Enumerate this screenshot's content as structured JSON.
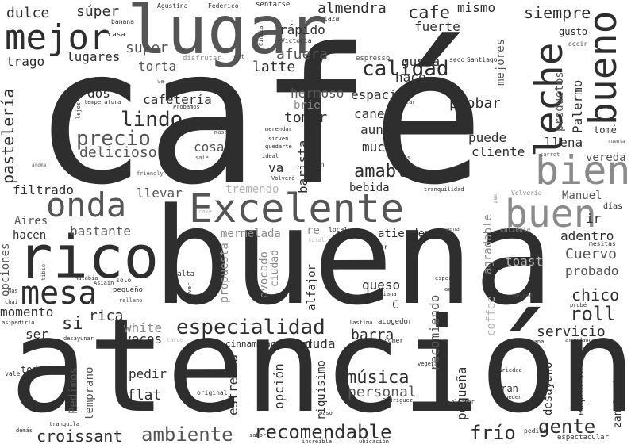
{
  "palette": {
    "dark": "#2e2e2e",
    "mid": "#555555",
    "light": "#8a8a8a",
    "faint": "#b5b5b5"
  },
  "words": [
    {
      "text": "café",
      "c": "dark"
    },
    {
      "text": "buena",
      "c": "dark"
    },
    {
      "text": "atención",
      "c": "dark"
    },
    {
      "text": "lugar",
      "c": "mid"
    },
    {
      "text": "mejor",
      "c": "dark"
    },
    {
      "text": "rico",
      "c": "dark"
    },
    {
      "text": "Excelente",
      "c": "mid"
    },
    {
      "text": "onda",
      "c": "mid"
    },
    {
      "text": "mesa",
      "c": "dark"
    },
    {
      "text": "leche",
      "c": "dark"
    },
    {
      "text": "bueno",
      "c": "dark"
    },
    {
      "text": "bien",
      "c": "light"
    },
    {
      "text": "buen",
      "c": "light"
    },
    {
      "text": "especialidad",
      "c": "dark"
    },
    {
      "text": "recomendable",
      "c": "dark"
    },
    {
      "text": "ambiente",
      "c": "mid"
    },
    {
      "text": "croissant",
      "c": "dark"
    },
    {
      "text": "frío",
      "c": "dark"
    },
    {
      "text": "gente",
      "c": "dark"
    },
    {
      "text": "música",
      "c": "dark"
    },
    {
      "text": "personal",
      "c": "mid"
    },
    {
      "text": "precio",
      "c": "mid"
    },
    {
      "text": "lindo",
      "c": "dark"
    },
    {
      "text": "calidad",
      "c": "dark"
    },
    {
      "text": "amable",
      "c": "dark"
    },
    {
      "text": "almendra",
      "c": "dark"
    },
    {
      "text": "cafe",
      "c": "dark"
    },
    {
      "text": "siempre",
      "c": "dark"
    },
    {
      "text": "súper",
      "c": "dark"
    },
    {
      "text": "dulce",
      "c": "dark"
    },
    {
      "text": "super",
      "c": "mid"
    },
    {
      "text": "torta",
      "c": "mid"
    },
    {
      "text": "trago",
      "c": "dark"
    },
    {
      "text": "lugares",
      "c": "dark"
    },
    {
      "text": "rápido",
      "c": "dark"
    },
    {
      "text": "afuera",
      "c": "mid"
    },
    {
      "text": "latte",
      "c": "dark"
    },
    {
      "text": "fuerte",
      "c": "dark"
    },
    {
      "text": "mismo",
      "c": "dark"
    },
    {
      "text": "gusta",
      "c": "dark"
    },
    {
      "text": "hace",
      "c": "dark"
    },
    {
      "text": "dos",
      "c": "dark"
    },
    {
      "text": "cafetería",
      "c": "dark"
    },
    {
      "text": "hermoso",
      "c": "mid"
    },
    {
      "text": "espacio",
      "c": "dark"
    },
    {
      "text": "canela",
      "c": "dark"
    },
    {
      "text": "aunque",
      "c": "dark"
    },
    {
      "text": "mucha",
      "c": "dark"
    },
    {
      "text": "tomar",
      "c": "dark"
    },
    {
      "text": "brie",
      "c": "light"
    },
    {
      "text": "probar",
      "c": "dark"
    },
    {
      "text": "puede",
      "c": "dark"
    },
    {
      "text": "cliente",
      "c": "dark"
    },
    {
      "text": "llena",
      "c": "dark"
    },
    {
      "text": "vereda",
      "c": "mid"
    },
    {
      "text": "delicioso",
      "c": "mid"
    },
    {
      "text": "cosa",
      "c": "mid"
    },
    {
      "text": "va",
      "c": "dark"
    },
    {
      "text": "bebida",
      "c": "dark"
    },
    {
      "text": "llevar",
      "c": "mid"
    },
    {
      "text": "tremendo",
      "c": "faint"
    },
    {
      "text": "filtrado",
      "c": "dark"
    },
    {
      "text": "bastante",
      "c": "mid"
    },
    {
      "text": "hacen",
      "c": "dark"
    },
    {
      "text": "Aires",
      "c": "mid"
    },
    {
      "text": "mermelada",
      "c": "light"
    },
    {
      "text": "re",
      "c": "light"
    },
    {
      "text": "atienden",
      "c": "dark"
    },
    {
      "text": "adentro",
      "c": "dark"
    },
    {
      "text": "Cuervo",
      "c": "mid"
    },
    {
      "text": "probado",
      "c": "mid"
    },
    {
      "text": "chico",
      "c": "dark"
    },
    {
      "text": "roll",
      "c": "dark"
    },
    {
      "text": "servicio",
      "c": "dark"
    },
    {
      "text": "toast",
      "c": "faint"
    },
    {
      "text": "Manuel",
      "c": "mid"
    },
    {
      "text": "ir",
      "c": "dark"
    },
    {
      "text": "momento",
      "c": "dark"
    },
    {
      "text": "si",
      "c": "dark"
    },
    {
      "text": "rica",
      "c": "dark"
    },
    {
      "text": "white",
      "c": "light"
    },
    {
      "text": "ser",
      "c": "dark"
    },
    {
      "text": "veces",
      "c": "dark"
    },
    {
      "text": "barra",
      "c": "dark"
    },
    {
      "text": "duda",
      "c": "dark"
    },
    {
      "text": "queso",
      "c": "dark"
    },
    {
      "text": "pedir",
      "c": "dark"
    },
    {
      "text": "flat",
      "c": "dark"
    },
    {
      "text": "estrella",
      "c": "dark"
    },
    {
      "text": "opción",
      "c": "dark"
    },
    {
      "text": "todas",
      "c": "dark"
    },
    {
      "text": "Pedimos",
      "c": "mid"
    },
    {
      "text": "temprano",
      "c": "mid"
    },
    {
      "text": "cinnamon",
      "c": "dark"
    },
    {
      "text": "acompañar",
      "c": "dark"
    },
    {
      "text": "opciones",
      "c": "mid"
    },
    {
      "text": "pastelería",
      "c": "dark"
    },
    {
      "text": "productos",
      "c": "mid"
    },
    {
      "text": "Palermo",
      "c": "dark"
    },
    {
      "text": "mejores",
      "c": "mid"
    },
    {
      "text": "barista",
      "c": "dark"
    },
    {
      "text": "agradable",
      "c": "light"
    },
    {
      "text": "propuesta",
      "c": "light"
    },
    {
      "text": "avocado",
      "c": "light"
    },
    {
      "text": "ciudad",
      "c": "light"
    },
    {
      "text": "alfajor",
      "c": "dark"
    },
    {
      "text": "recomiendo",
      "c": "mid"
    },
    {
      "text": "pequeña",
      "c": "dark"
    },
    {
      "text": "desayuno",
      "c": "dark"
    },
    {
      "text": "riquísimo",
      "c": "dark"
    },
    {
      "text": "coffee",
      "c": "faint"
    },
    {
      "text": "gran",
      "c": "dark"
    },
    {
      "text": "tomé",
      "c": "dark"
    },
    {
      "text": "gusto",
      "c": "dark"
    },
    {
      "text": "exquisito",
      "c": "dark"
    },
    {
      "text": "zanahoria",
      "c": "dark"
    },
    {
      "text": "días",
      "c": "dark"
    },
    {
      "text": "Agustina",
      "c": "dark"
    },
    {
      "text": "Federico",
      "c": "dark"
    },
    {
      "text": "sentarse",
      "c": "dark"
    },
    {
      "text": "taza",
      "c": "dark"
    },
    {
      "text": "banana",
      "c": "dark"
    },
    {
      "text": "casa",
      "c": "dark"
    },
    {
      "text": "Cintia",
      "c": "dark"
    },
    {
      "text": "Victoria",
      "c": "dark"
    },
    {
      "text": "espresso",
      "c": "mid"
    },
    {
      "text": "seco",
      "c": "dark"
    },
    {
      "text": "Santiago",
      "c": "dark"
    },
    {
      "text": "decir",
      "c": "mid"
    },
    {
      "text": "disfrutar",
      "c": "light"
    },
    {
      "text": "pet",
      "c": "mid"
    },
    {
      "text": "visitar",
      "c": "dark"
    },
    {
      "text": "lejos",
      "c": "dark"
    },
    {
      "text": "temperatura",
      "c": "dark"
    },
    {
      "text": "Probamos",
      "c": "dark"
    },
    {
      "text": "masa",
      "c": "mid"
    },
    {
      "text": "merendar",
      "c": "dark"
    },
    {
      "text": "sirven",
      "c": "dark"
    },
    {
      "text": "quedarte",
      "c": "dark"
    },
    {
      "text": "ideal",
      "c": "dark"
    },
    {
      "text": "sale",
      "c": "mid"
    },
    {
      "text": "frías",
      "c": "dark"
    },
    {
      "text": "tan",
      "c": "dark"
    },
    {
      "text": "Volveré",
      "c": "dark"
    },
    {
      "text": "friendly",
      "c": "mid"
    },
    {
      "text": "aroma",
      "c": "mid"
    },
    {
      "text": "carrot",
      "c": "mid"
    },
    {
      "text": "cuenta",
      "c": "mid"
    },
    {
      "text": "tranquilidad",
      "c": "dark"
    },
    {
      "text": "Volvería",
      "c": "light"
    },
    {
      "text": "pan",
      "c": "light"
    },
    {
      "text": "cake",
      "c": "faint"
    },
    {
      "text": "vez",
      "c": "dark"
    },
    {
      "text": "total",
      "c": "faint"
    },
    {
      "text": "local",
      "c": "dark"
    },
    {
      "text": "pena",
      "c": "mid"
    },
    {
      "text": "caliente",
      "c": "light"
    },
    {
      "text": "mesitas",
      "c": "dark"
    },
    {
      "text": "bar",
      "c": "dark"
    },
    {
      "text": "tibio",
      "c": "mid"
    },
    {
      "text": "Malabia",
      "c": "dark"
    },
    {
      "text": "solo",
      "c": "dark"
    },
    {
      "text": "palta",
      "c": "dark"
    },
    {
      "text": "mas",
      "c": "dark"
    },
    {
      "text": "pequeño",
      "c": "dark"
    },
    {
      "text": "Asiain",
      "c": "dark"
    },
    {
      "text": "chai",
      "c": "dark"
    },
    {
      "text": "relleno",
      "c": "mid"
    },
    {
      "text": "volver",
      "c": "dark"
    },
    {
      "text": "Mariana",
      "c": "dark"
    },
    {
      "text": "espera",
      "c": "dark"
    },
    {
      "text": "acido",
      "c": "dark"
    },
    {
      "text": "helado",
      "c": "mid"
    },
    {
      "text": "probé",
      "c": "dark"
    },
    {
      "text": "así",
      "c": "dark"
    },
    {
      "text": "pedirlo",
      "c": "dark"
    },
    {
      "text": "desayunar",
      "c": "dark"
    },
    {
      "text": "tarde",
      "c": "faint"
    },
    {
      "text": "lastima",
      "c": "dark"
    },
    {
      "text": "acogedor",
      "c": "dark"
    },
    {
      "text": "C",
      "c": "dark"
    },
    {
      "text": "comer",
      "c": "dark"
    },
    {
      "text": "semana",
      "c": "dark"
    },
    {
      "text": "arandanos",
      "c": "dark"
    },
    {
      "text": "vale",
      "c": "dark"
    },
    {
      "text": "vegetal",
      "c": "dark"
    },
    {
      "text": "Variedad",
      "c": "dark"
    },
    {
      "text": "original",
      "c": "dark"
    },
    {
      "text": "paso",
      "c": "dark"
    },
    {
      "text": "Rodriguez",
      "c": "dark"
    },
    {
      "text": "Salvador",
      "c": "dark"
    },
    {
      "text": "pueden",
      "c": "dark"
    },
    {
      "text": "demás",
      "c": "dark"
    },
    {
      "text": "tranquila",
      "c": "dark"
    },
    {
      "text": "sabor",
      "c": "dark"
    },
    {
      "text": "increíble",
      "c": "dark"
    },
    {
      "text": "ubicación",
      "c": "dark"
    },
    {
      "text": "pedido",
      "c": "dark"
    },
    {
      "text": "espectacular",
      "c": "dark"
    },
    {
      "text": "ve",
      "c": "mid"
    }
  ]
}
